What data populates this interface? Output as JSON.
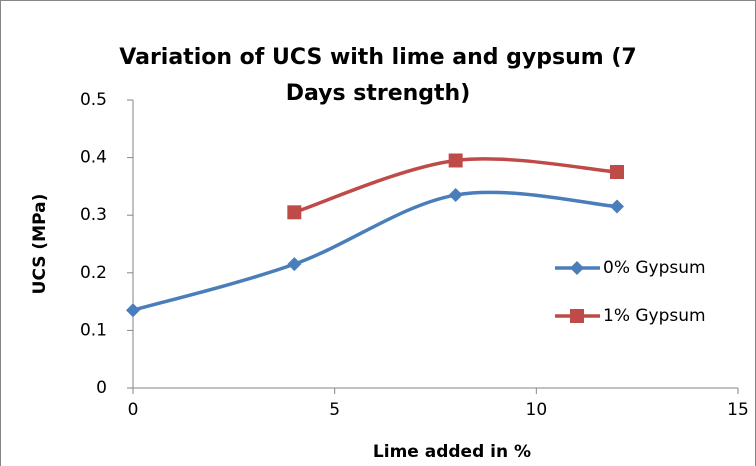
{
  "chart_data": {
    "type": "line",
    "title": "Variation of UCS with lime and gypsum (7 Days strength)",
    "x_label": "Lime added in %",
    "y_label": "UCS (MPa)",
    "xlim": [
      0,
      15
    ],
    "xticks": [
      0,
      5,
      10,
      15
    ],
    "ylim": [
      0,
      0.5
    ],
    "yticks": [
      0,
      0.1,
      0.2,
      0.3,
      0.4,
      0.5
    ],
    "smooth": true,
    "legend": "right",
    "series": [
      {
        "name": "0% Gypsum",
        "color": "#4a7ebb",
        "marker": "diamond",
        "x": [
          0,
          4,
          8,
          12
        ],
        "values": [
          0.135,
          0.215,
          0.335,
          0.315
        ]
      },
      {
        "name": "1% Gypsum",
        "color": "#be4b48",
        "marker": "square",
        "x": [
          4,
          8,
          12
        ],
        "values": [
          0.305,
          0.395,
          0.375
        ]
      }
    ]
  }
}
